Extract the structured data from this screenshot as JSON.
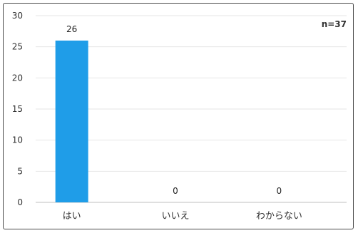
{
  "chart_data": {
    "type": "bar",
    "categories": [
      "はい",
      "いいえ",
      "わからない"
    ],
    "values": [
      26,
      0,
      0
    ],
    "data_labels": [
      "26",
      "0",
      "0"
    ],
    "ylim": [
      0,
      30
    ],
    "yticks": [
      0,
      5,
      10,
      15,
      20,
      25,
      30
    ],
    "ytick_labels": [
      "0",
      "5",
      "10",
      "15",
      "20",
      "25",
      "30"
    ],
    "annotation": "n=37",
    "bar_color": "#1f9de8",
    "grid": true,
    "legend": "none"
  }
}
